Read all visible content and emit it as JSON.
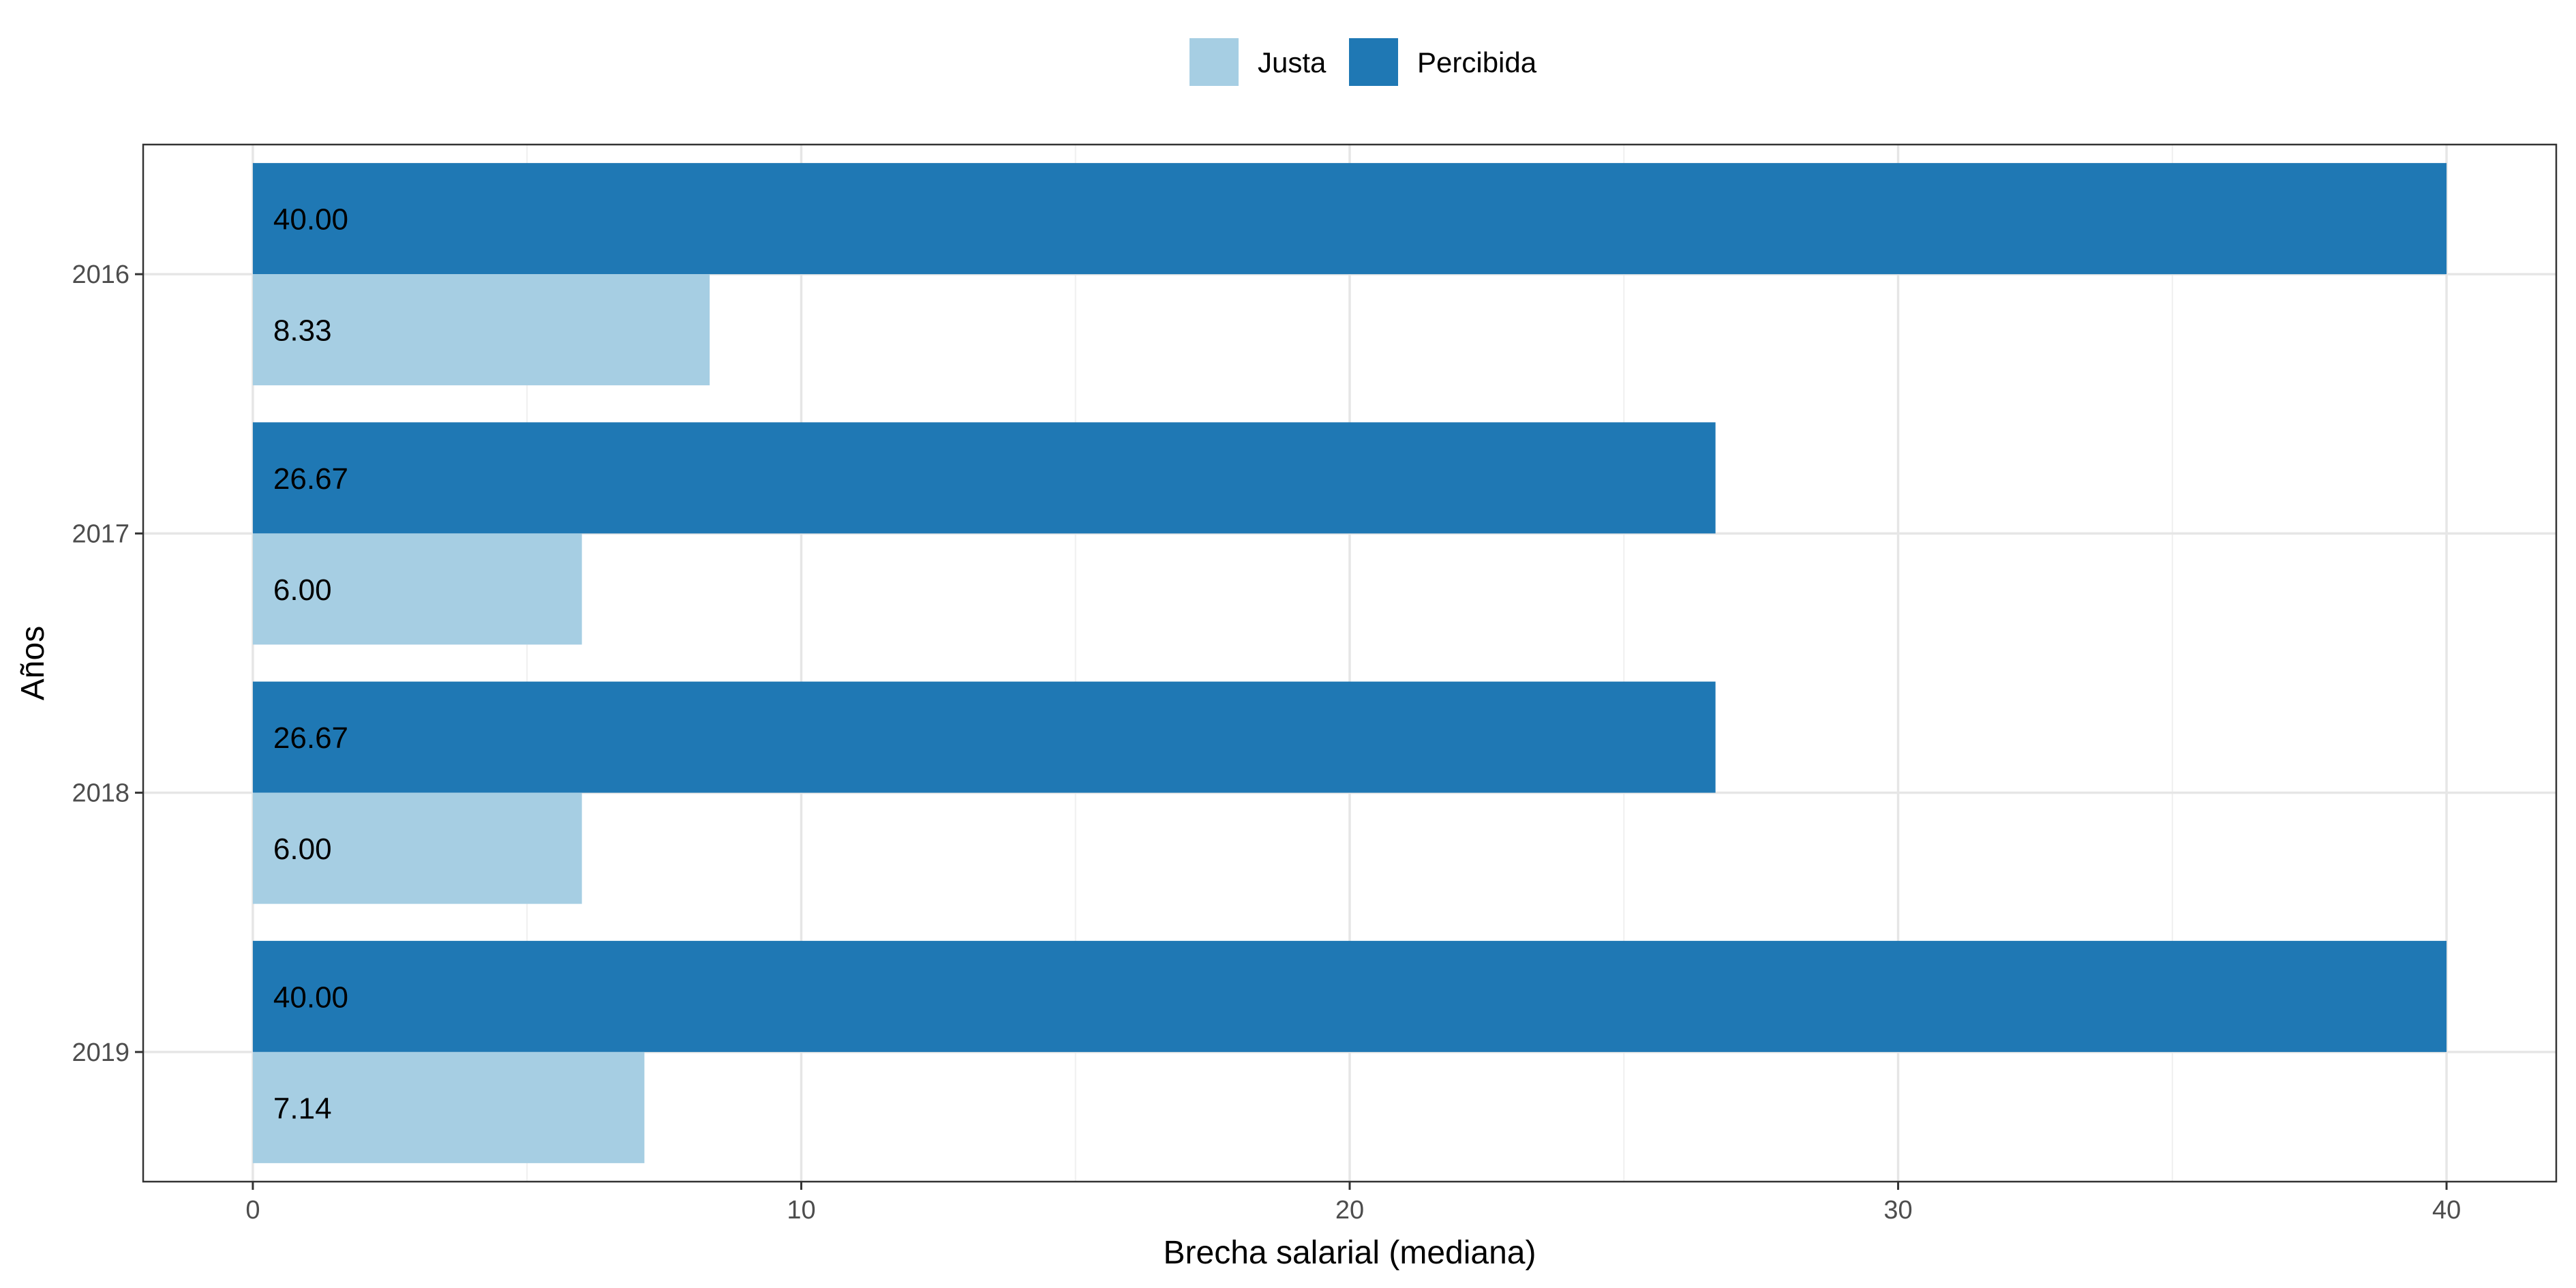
{
  "chart_data": {
    "type": "bar",
    "orientation": "horizontal",
    "categories": [
      "2016",
      "2017",
      "2018",
      "2019"
    ],
    "series": [
      {
        "name": "Justa",
        "color": "#a6cee3",
        "values": [
          8.33,
          6.0,
          6.0,
          7.14
        ],
        "labels": [
          "8.33",
          "6.00",
          "6.00",
          "7.14"
        ]
      },
      {
        "name": "Percibida",
        "color": "#1f78b4",
        "values": [
          40.0,
          26.67,
          26.67,
          40.0
        ],
        "labels": [
          "40.00",
          "26.67",
          "26.67",
          "40.00"
        ]
      }
    ],
    "title": "",
    "xlabel": "Brecha salarial (mediana)",
    "ylabel": "Años",
    "xlim": [
      -2,
      42
    ],
    "xticks": [
      0,
      10,
      20,
      30,
      40
    ],
    "xtick_labels": [
      "0",
      "10",
      "20",
      "30",
      "40"
    ],
    "grid": true,
    "legend_position": "top"
  }
}
